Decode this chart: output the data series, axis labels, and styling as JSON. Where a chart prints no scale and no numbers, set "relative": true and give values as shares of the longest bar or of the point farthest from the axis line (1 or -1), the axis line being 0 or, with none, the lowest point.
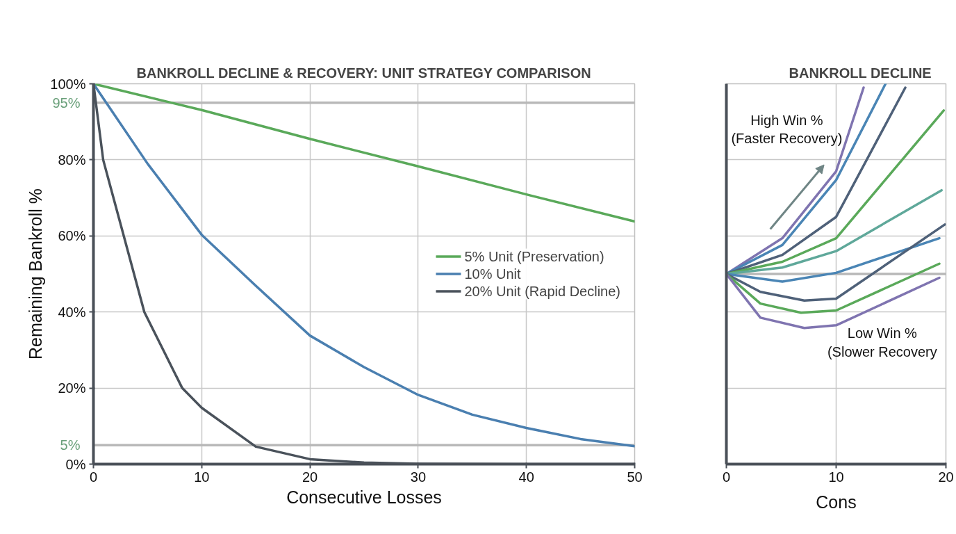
{
  "chart_data": [
    {
      "type": "line",
      "title": "BANKROLL DECLINE & RECOVERY: UNIT STRATEGY COMPARISON",
      "xlabel": "Consecutive Losses",
      "ylabel": "Remaining Bankroll %",
      "xlim": [
        0,
        50
      ],
      "xticks": [
        0,
        10,
        20,
        30,
        40,
        50
      ],
      "ylim": [
        0,
        100
      ],
      "yticks": [
        {
          "value": 0,
          "label": "0%"
        },
        {
          "value": 20,
          "label": "20%"
        },
        {
          "value": 40,
          "label": "40%"
        },
        {
          "value": 60,
          "label": "60%"
        },
        {
          "value": 80,
          "label": "80%"
        },
        {
          "value": 100,
          "label": "100%"
        }
      ],
      "grid": true,
      "legend": "right",
      "ref_lines": [
        {
          "axis": "y",
          "value": 95,
          "label": "95%",
          "color": "#b8b8b8"
        },
        {
          "axis": "y",
          "value": 5,
          "label": "5%",
          "color": "#b8b8b8"
        }
      ],
      "series": [
        {
          "name": "5% Unit (Preservation)",
          "color": "#5aa95a",
          "x": [
            0,
            10,
            20,
            30,
            40,
            50
          ],
          "values": [
            100,
            93.1,
            85.5,
            78.3,
            70.9,
            63.8
          ]
        },
        {
          "name": "10% Unit",
          "color": "#4a7fb0",
          "x": [
            0,
            5,
            10,
            15,
            20,
            25,
            30,
            35,
            40,
            45,
            50
          ],
          "values": [
            100,
            79,
            60.3,
            46.9,
            33.8,
            25.5,
            18.2,
            13,
            9.5,
            6.6,
            4.7
          ]
        },
        {
          "name": "20% Unit (Rapid Decline)",
          "color": "#4a525b",
          "x": [
            0,
            0.9,
            2.8,
            4.7,
            8.2,
            10,
            15,
            20,
            25,
            30,
            40,
            50
          ],
          "values": [
            100,
            80,
            60,
            40,
            20,
            14.8,
            4.6,
            1.3,
            0.4,
            0.1,
            0,
            0
          ]
        }
      ]
    },
    {
      "type": "line",
      "title": "BANKROLL DECLINE",
      "xlabel": "Cons",
      "relative": true,
      "xlim": [
        0,
        20
      ],
      "xticks": [
        0,
        10,
        20
      ],
      "grid": true,
      "legend": false,
      "annotations": [
        "High Win %\n(Faster Recovery)",
        "Low Win %\n(Slower Recovery"
      ],
      "ref_lines": [
        {
          "axis": "y",
          "value": 0.5,
          "color": "#b8b8b8"
        }
      ],
      "series": [
        {
          "color": "#7f74b0",
          "x": [
            0,
            5.1,
            10,
            12.5
          ],
          "values": [
            0.5,
            0.594,
            0.77,
            0.99
          ]
        },
        {
          "color": "#4a85b5",
          "x": [
            0,
            5.1,
            10,
            14.5
          ],
          "values": [
            0.5,
            0.576,
            0.747,
            1.0
          ]
        },
        {
          "color": "#4f6179",
          "x": [
            0,
            5.1,
            10,
            16.3
          ],
          "values": [
            0.5,
            0.55,
            0.65,
            0.99
          ]
        },
        {
          "color": "#5aa95a",
          "x": [
            0,
            5.1,
            10,
            19.8
          ],
          "values": [
            0.5,
            0.532,
            0.594,
            0.93
          ]
        },
        {
          "color": "#5fa89a",
          "x": [
            0,
            5.1,
            10,
            19.6
          ],
          "values": [
            0.5,
            0.517,
            0.56,
            0.72
          ]
        },
        {
          "color": "#4a85b5",
          "x": [
            0,
            5.1,
            10,
            19.4
          ],
          "values": [
            0.5,
            0.48,
            0.503,
            0.594
          ]
        },
        {
          "color": "#4f6179",
          "x": [
            0,
            3.1,
            7.1,
            10,
            19.9
          ],
          "values": [
            0.5,
            0.453,
            0.43,
            0.435,
            0.63
          ]
        },
        {
          "color": "#5aa95a",
          "x": [
            0,
            3.1,
            6.8,
            10,
            19.4
          ],
          "values": [
            0.5,
            0.422,
            0.398,
            0.404,
            0.527
          ]
        },
        {
          "color": "#7f74b0",
          "x": [
            0,
            3.1,
            7.1,
            10,
            19.4
          ],
          "values": [
            0.5,
            0.385,
            0.358,
            0.365,
            0.49
          ]
        }
      ]
    }
  ]
}
